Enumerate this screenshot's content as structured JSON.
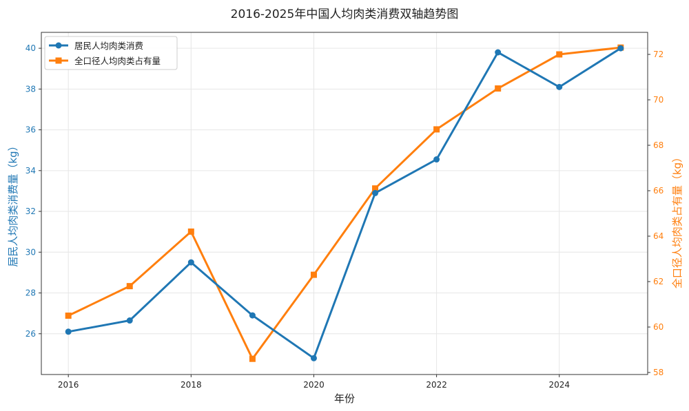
{
  "chart_data": {
    "type": "line",
    "title": "2016-2025年中国人均肉类消费双轴趋势图",
    "xlabel": "年份",
    "ylabel_left": "居民人均肉类消费量（kg）",
    "ylabel_right": "全口径人均肉类占有量（kg）",
    "x": [
      2016,
      2017,
      2018,
      2019,
      2020,
      2021,
      2022,
      2023,
      2024,
      2025
    ],
    "x_ticks": [
      "2016",
      "2018",
      "2020",
      "2022",
      "2024"
    ],
    "xlim": [
      2015.56,
      2025.44
    ],
    "ylim_left": [
      24.0,
      40.78
    ],
    "ylim_right": [
      57.91,
      72.97
    ],
    "y_ticks_left": [
      "26",
      "28",
      "30",
      "32",
      "34",
      "36",
      "38",
      "40"
    ],
    "y_ticks_right": [
      "58",
      "60",
      "62",
      "64",
      "66",
      "68",
      "70",
      "72"
    ],
    "grid": true,
    "legend_position": "top-left",
    "series": [
      {
        "name": "居民人均肉类消费",
        "axis": "left",
        "color": "#1f77b4",
        "marker": "circle",
        "values": [
          26.1,
          26.65,
          29.5,
          26.9,
          24.8,
          32.9,
          34.55,
          39.8,
          38.1,
          40.0
        ]
      },
      {
        "name": "全口径人均肉类占有量",
        "axis": "right",
        "color": "#ff7f0e",
        "marker": "square",
        "values": [
          60.5,
          61.8,
          64.2,
          58.6,
          62.3,
          66.1,
          68.7,
          70.5,
          72.0,
          72.3
        ]
      }
    ]
  }
}
